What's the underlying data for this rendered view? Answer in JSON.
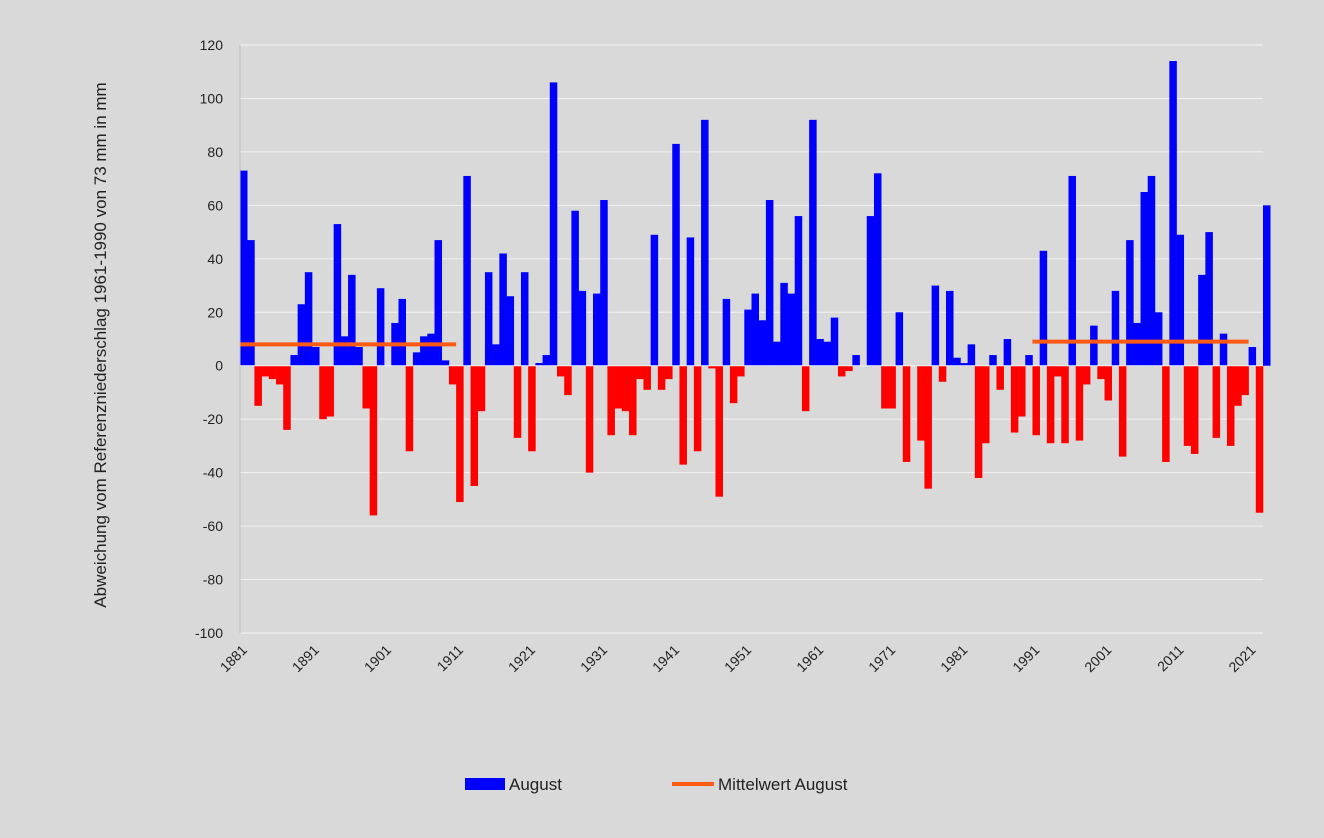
{
  "chart_data": {
    "type": "bar",
    "ylabel": "Abweichung vom Referenzniederschlag 1961-1990 von  73 mm in mm",
    "ylim": [
      -100,
      120
    ],
    "yticks": [
      -100,
      -80,
      -60,
      -40,
      -20,
      0,
      20,
      40,
      60,
      80,
      100,
      120
    ],
    "x_start": 1881,
    "x_end": 2022,
    "xtick_labels": [
      "1881",
      "1891",
      "1901",
      "1911",
      "1921",
      "1931",
      "1941",
      "1951",
      "1961",
      "1971",
      "1981",
      "1991",
      "2001",
      "2011",
      "2021"
    ],
    "grid": "horizontal",
    "legend_position": "bottom",
    "colors": {
      "positive": "#0000ff",
      "negative": "#ff0000",
      "mean": "#ff5a14",
      "grid": "#f2f2f2",
      "background": "#d9d9d9"
    },
    "series": [
      {
        "name": "August",
        "type": "bar",
        "values": [
          73,
          47,
          -15,
          -4,
          -5,
          -7,
          -24,
          4,
          23,
          35,
          7,
          -20,
          -19,
          53,
          11,
          34,
          7,
          -16,
          -56,
          29,
          0,
          16,
          25,
          -32,
          5,
          11,
          12,
          47,
          2,
          -7,
          -51,
          71,
          -45,
          -17,
          35,
          8,
          42,
          26,
          -27,
          35,
          -32,
          1,
          4,
          106,
          -4,
          -11,
          58,
          28,
          -40,
          27,
          62,
          -26,
          -16,
          -17,
          -26,
          -5,
          -9,
          49,
          -9,
          -5,
          83,
          -37,
          48,
          -32,
          92,
          -1,
          -49,
          25,
          -14,
          -4,
          21,
          27,
          17,
          62,
          9,
          31,
          27,
          56,
          -17,
          92,
          10,
          9,
          18,
          -4,
          -2,
          4,
          0,
          56,
          72,
          -16,
          -16,
          20,
          -36,
          0,
          -28,
          -46,
          30,
          -6,
          28,
          3,
          1,
          8,
          -42,
          -29,
          4,
          -9,
          10,
          -25,
          -19,
          4,
          -26,
          43,
          -29,
          -4,
          -29,
          71,
          -28,
          -7,
          15,
          -5,
          -13,
          28,
          -34,
          47,
          16,
          65,
          71,
          20,
          -36,
          114,
          49,
          -30,
          -33,
          34,
          50,
          -27,
          12,
          -30,
          -15,
          -11,
          7,
          -55,
          60
        ]
      },
      {
        "name": "Mittelwert August",
        "type": "line",
        "segments": [
          {
            "x0": 1881,
            "x1": 1910,
            "y": 8
          },
          {
            "x0": 1991,
            "x1": 2020,
            "y": 9
          }
        ]
      }
    ]
  }
}
